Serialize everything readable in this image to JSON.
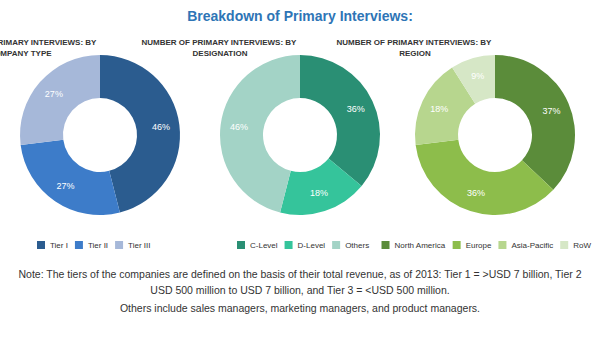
{
  "title": "Breakdown of Primary Interviews:",
  "chart_data": [
    {
      "type": "donut",
      "title": "NUMBER OF PRIMARY INTERVIEWS: BY COMPANY TYPE",
      "categories": [
        "Tier I",
        "Tier II",
        "Tier III"
      ],
      "values": [
        46,
        27,
        27
      ],
      "value_labels": [
        "46%",
        "27%",
        "27%"
      ],
      "colors": [
        "#2b5c8f",
        "#3d7cc9",
        "#a6b8d9"
      ],
      "data_labels": true,
      "legend": "bottom"
    },
    {
      "type": "donut",
      "title": "NUMBER OF PRIMARY INTERVIEWS: BY DESIGNATION",
      "categories": [
        "C-Level",
        "D-Level",
        "Others"
      ],
      "values": [
        36,
        18,
        46
      ],
      "value_labels": [
        "36%",
        "18%",
        "46%"
      ],
      "colors": [
        "#2a8f74",
        "#35c49b",
        "#a3d3c6"
      ],
      "data_labels": true,
      "legend": "bottom"
    },
    {
      "type": "donut",
      "title": "NUMBER OF PRIMARY INTERVIEWS: BY REGION",
      "categories": [
        "North America",
        "Europe",
        "Asia-Pacific",
        "RoW"
      ],
      "values": [
        37,
        36,
        18,
        9
      ],
      "value_labels": [
        "37%",
        "36%",
        "18%",
        "9%"
      ],
      "colors": [
        "#5b8c3a",
        "#8dbd4b",
        "#b7d68e",
        "#d6e7c6"
      ],
      "data_labels": true,
      "legend": "bottom"
    }
  ],
  "notes": [
    "Note: The tiers of the companies are defined on the basis of their total revenue, as of 2013: Tier 1 = >USD 7 billion, Tier 2 USD 500 million to USD 7 billion, and Tier 3 = <USD 500 million.",
    "Others include sales managers, marketing managers, and product managers."
  ]
}
